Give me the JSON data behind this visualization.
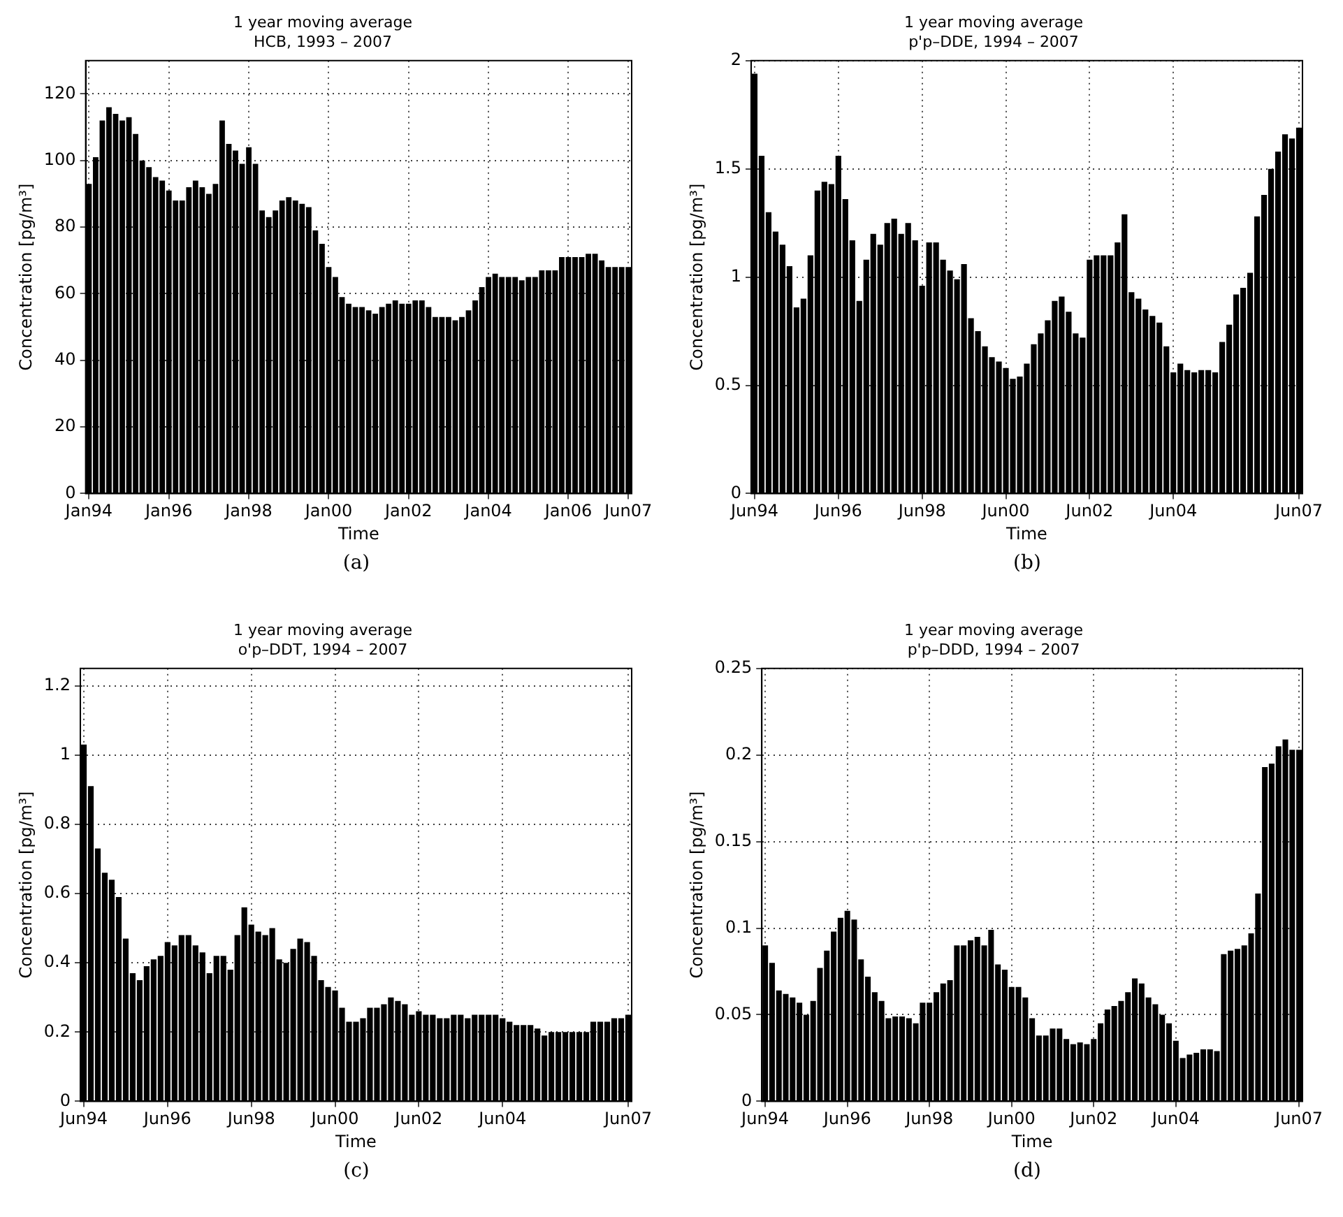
{
  "chart_data": [
    {
      "type": "bar",
      "title": "1 year moving average",
      "subtitle": "HCB, 1993 – 2007",
      "xlabel": "Time",
      "ylabel": "Concentration [pg/m³]",
      "color": "#000000",
      "grid": true,
      "ylim": [
        0,
        130
      ],
      "yticks": [
        0,
        20,
        40,
        60,
        80,
        100,
        120
      ],
      "annotations": [
        "(a)"
      ],
      "categories": [
        "Jan94",
        null,
        null,
        null,
        null,
        null,
        null,
        null,
        null,
        null,
        null,
        null,
        "Jan96",
        null,
        null,
        null,
        null,
        null,
        null,
        null,
        null,
        null,
        null,
        null,
        "Jan98",
        null,
        null,
        null,
        null,
        null,
        null,
        null,
        null,
        null,
        null,
        null,
        "Jan00",
        null,
        null,
        null,
        null,
        null,
        null,
        null,
        null,
        null,
        null,
        null,
        "Jan02",
        null,
        null,
        null,
        null,
        null,
        null,
        null,
        null,
        null,
        null,
        null,
        "Jan04",
        null,
        null,
        null,
        null,
        null,
        null,
        null,
        null,
        null,
        null,
        null,
        "Jan06",
        null,
        null,
        null,
        null,
        null,
        null,
        null,
        null,
        "Jun07"
      ],
      "values": [
        93,
        101,
        112,
        116,
        114,
        112,
        113,
        108,
        100,
        98,
        95,
        94,
        91,
        88,
        88,
        92,
        94,
        92,
        90,
        93,
        112,
        105,
        103,
        99,
        104,
        99,
        85,
        83,
        85,
        88,
        89,
        88,
        87,
        86,
        79,
        75,
        68,
        65,
        59,
        57,
        56,
        56,
        55,
        54,
        56,
        57,
        58,
        57,
        57,
        58,
        58,
        56,
        53,
        53,
        53,
        52,
        53,
        55,
        58,
        62,
        65,
        66,
        65,
        65,
        65,
        64,
        65,
        65,
        67,
        67,
        67,
        71,
        71,
        71,
        71,
        72,
        72,
        70,
        68,
        68,
        68,
        68
      ]
    },
    {
      "type": "bar",
      "title": "1 year moving average",
      "subtitle": "p'p–DDE, 1994 – 2007",
      "xlabel": "Time",
      "ylabel": "Concentration [pg/m³]",
      "color": "#000000",
      "grid": true,
      "ylim": [
        0,
        2
      ],
      "yticks": [
        0,
        0.5,
        1,
        1.5,
        2
      ],
      "annotations": [
        "(b)"
      ],
      "categories": [
        "Jun94",
        null,
        null,
        null,
        null,
        null,
        null,
        null,
        null,
        null,
        null,
        null,
        "Jun96",
        null,
        null,
        null,
        null,
        null,
        null,
        null,
        null,
        null,
        null,
        null,
        "Jun98",
        null,
        null,
        null,
        null,
        null,
        null,
        null,
        null,
        null,
        null,
        null,
        "Jun00",
        null,
        null,
        null,
        null,
        null,
        null,
        null,
        null,
        null,
        null,
        null,
        "Jun02",
        null,
        null,
        null,
        null,
        null,
        null,
        null,
        null,
        null,
        null,
        null,
        "Jun04",
        null,
        null,
        null,
        null,
        null,
        null,
        null,
        null,
        null,
        null,
        null,
        null,
        null,
        null,
        null,
        null,
        null,
        "Jun07"
      ],
      "values": [
        1.94,
        1.56,
        1.3,
        1.21,
        1.15,
        1.05,
        0.86,
        0.9,
        1.1,
        1.4,
        1.44,
        1.43,
        1.56,
        1.36,
        1.17,
        0.89,
        1.08,
        1.2,
        1.15,
        1.25,
        1.27,
        1.2,
        1.25,
        1.17,
        0.96,
        1.16,
        1.16,
        1.08,
        1.03,
        0.99,
        1.06,
        0.81,
        0.75,
        0.68,
        0.63,
        0.61,
        0.58,
        0.53,
        0.54,
        0.6,
        0.69,
        0.74,
        0.8,
        0.89,
        0.91,
        0.84,
        0.74,
        0.72,
        1.08,
        1.1,
        1.1,
        1.1,
        1.16,
        1.29,
        0.93,
        0.9,
        0.85,
        0.82,
        0.79,
        0.68,
        0.56,
        0.6,
        0.57,
        0.56,
        0.57,
        0.57,
        0.56,
        0.7,
        0.78,
        0.92,
        0.95,
        1.02,
        1.28,
        1.38,
        1.5,
        1.58,
        1.66,
        1.64,
        1.69
      ]
    },
    {
      "type": "bar",
      "title": "1 year moving average",
      "subtitle": "o'p–DDT, 1994 – 2007",
      "xlabel": "Time",
      "ylabel": "Concentration [pg/m³]",
      "color": "#000000",
      "grid": true,
      "ylim": [
        0,
        1.25
      ],
      "yticks": [
        0,
        0.2,
        0.4,
        0.6,
        0.8,
        1,
        1.2
      ],
      "annotations": [
        "(c)"
      ],
      "categories": [
        "Jun94",
        null,
        null,
        null,
        null,
        null,
        null,
        null,
        null,
        null,
        null,
        null,
        "Jun96",
        null,
        null,
        null,
        null,
        null,
        null,
        null,
        null,
        null,
        null,
        null,
        "Jun98",
        null,
        null,
        null,
        null,
        null,
        null,
        null,
        null,
        null,
        null,
        null,
        "Jun00",
        null,
        null,
        null,
        null,
        null,
        null,
        null,
        null,
        null,
        null,
        null,
        "Jun02",
        null,
        null,
        null,
        null,
        null,
        null,
        null,
        null,
        null,
        null,
        null,
        "Jun04",
        null,
        null,
        null,
        null,
        null,
        null,
        null,
        null,
        null,
        null,
        null,
        null,
        null,
        null,
        null,
        null,
        null,
        "Jun07"
      ],
      "values": [
        1.03,
        0.91,
        0.73,
        0.66,
        0.64,
        0.59,
        0.47,
        0.37,
        0.35,
        0.39,
        0.41,
        0.42,
        0.46,
        0.45,
        0.48,
        0.48,
        0.45,
        0.43,
        0.37,
        0.42,
        0.42,
        0.38,
        0.48,
        0.56,
        0.51,
        0.49,
        0.48,
        0.5,
        0.41,
        0.4,
        0.44,
        0.47,
        0.46,
        0.42,
        0.35,
        0.33,
        0.32,
        0.27,
        0.23,
        0.23,
        0.24,
        0.27,
        0.27,
        0.28,
        0.3,
        0.29,
        0.28,
        0.25,
        0.26,
        0.25,
        0.25,
        0.24,
        0.24,
        0.25,
        0.25,
        0.24,
        0.25,
        0.25,
        0.25,
        0.25,
        0.24,
        0.23,
        0.22,
        0.22,
        0.22,
        0.21,
        0.19,
        0.2,
        0.2,
        0.2,
        0.2,
        0.2,
        0.2,
        0.23,
        0.23,
        0.23,
        0.24,
        0.24,
        0.25
      ]
    },
    {
      "type": "bar",
      "title": "1 year moving average",
      "subtitle": "p'p–DDD, 1994 – 2007",
      "xlabel": "Time",
      "ylabel": "Concentration [pg/m³]",
      "color": "#000000",
      "grid": true,
      "ylim": [
        0,
        0.25
      ],
      "yticks": [
        0,
        0.05,
        0.1,
        0.15,
        0.2,
        0.25
      ],
      "annotations": [
        "(d)"
      ],
      "categories": [
        "Jun94",
        null,
        null,
        null,
        null,
        null,
        null,
        null,
        null,
        null,
        null,
        null,
        "Jun96",
        null,
        null,
        null,
        null,
        null,
        null,
        null,
        null,
        null,
        null,
        null,
        "Jun98",
        null,
        null,
        null,
        null,
        null,
        null,
        null,
        null,
        null,
        null,
        null,
        "Jun00",
        null,
        null,
        null,
        null,
        null,
        null,
        null,
        null,
        null,
        null,
        null,
        "Jun02",
        null,
        null,
        null,
        null,
        null,
        null,
        null,
        null,
        null,
        null,
        null,
        "Jun04",
        null,
        null,
        null,
        null,
        null,
        null,
        null,
        null,
        null,
        null,
        null,
        null,
        null,
        null,
        null,
        null,
        null,
        "Jun07"
      ],
      "values": [
        0.09,
        0.08,
        0.064,
        0.062,
        0.06,
        0.057,
        0.05,
        0.058,
        0.077,
        0.087,
        0.098,
        0.106,
        0.11,
        0.105,
        0.082,
        0.072,
        0.063,
        0.058,
        0.048,
        0.049,
        0.049,
        0.048,
        0.045,
        0.057,
        0.057,
        0.063,
        0.068,
        0.07,
        0.09,
        0.09,
        0.093,
        0.095,
        0.09,
        0.099,
        0.079,
        0.076,
        0.066,
        0.066,
        0.06,
        0.048,
        0.038,
        0.038,
        0.042,
        0.042,
        0.036,
        0.033,
        0.034,
        0.033,
        0.036,
        0.045,
        0.053,
        0.055,
        0.058,
        0.063,
        0.071,
        0.068,
        0.06,
        0.056,
        0.05,
        0.045,
        0.035,
        0.025,
        0.027,
        0.028,
        0.03,
        0.03,
        0.029,
        0.085,
        0.087,
        0.088,
        0.09,
        0.097,
        0.12,
        0.193,
        0.195,
        0.205,
        0.209,
        0.203,
        0.203
      ]
    }
  ]
}
